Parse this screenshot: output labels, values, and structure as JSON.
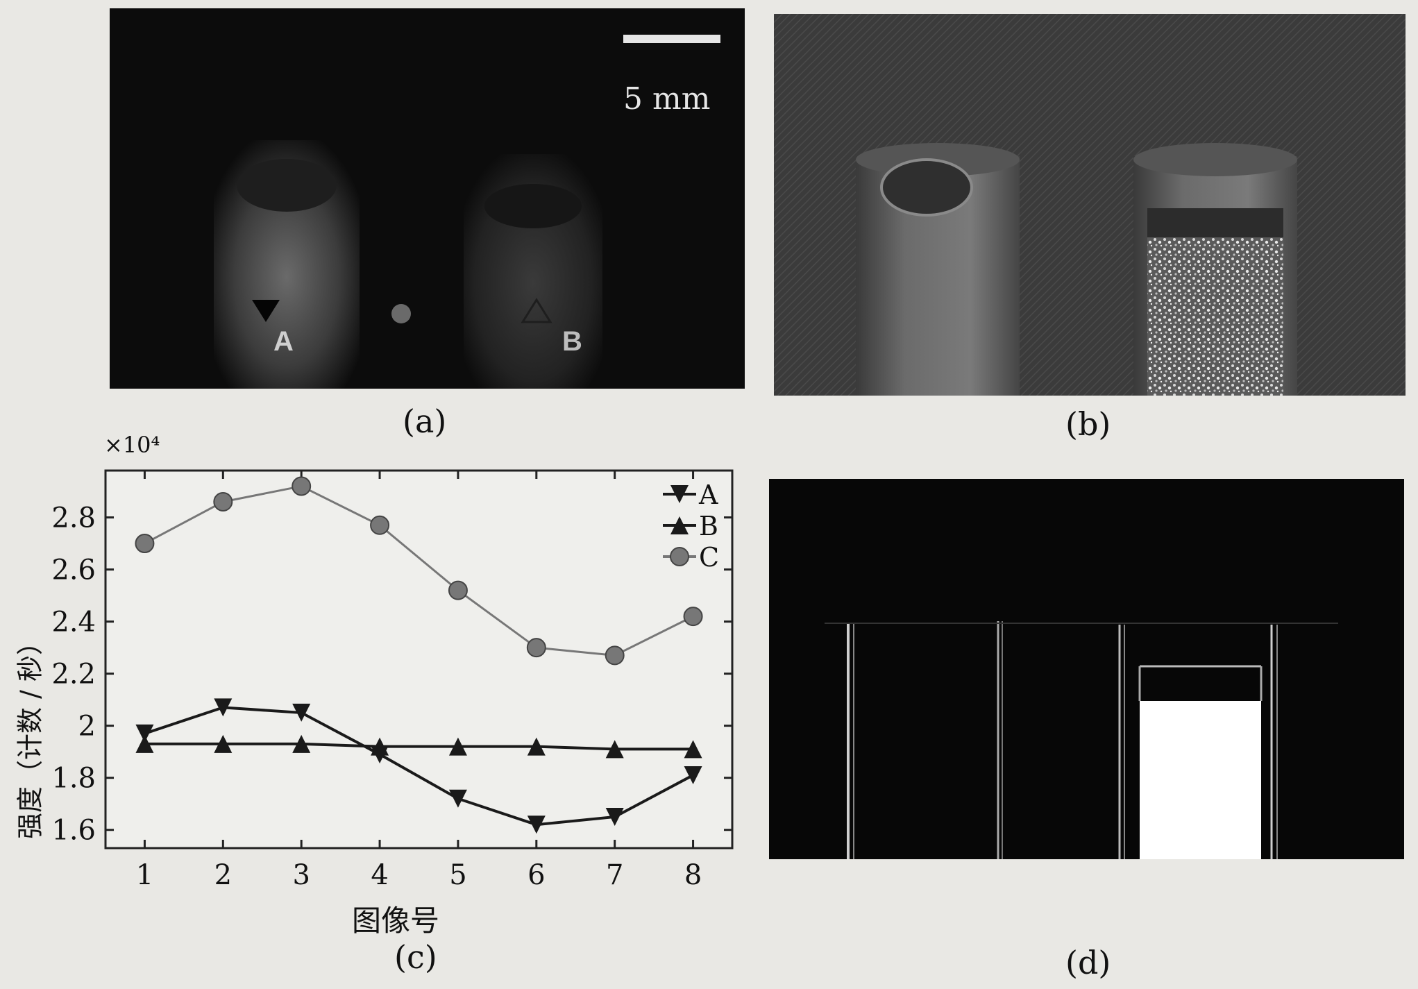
{
  "figure": {
    "panel_a": {
      "caption": "(a)",
      "scale_bar_label": "5 mm",
      "label_a": "A",
      "label_b": "B"
    },
    "panel_b": {
      "caption": "(b)"
    },
    "panel_c": {
      "caption": "(c)"
    },
    "panel_d": {
      "caption": "(d)"
    }
  },
  "chart_data": {
    "type": "line",
    "title": "",
    "xlabel": "图像号",
    "ylabel": "强度（计数 / 秒）",
    "y_multiplier": "×10⁴",
    "x": [
      1,
      2,
      3,
      4,
      5,
      6,
      7,
      8
    ],
    "xlim": [
      0.5,
      8.5
    ],
    "ylim": [
      1.53,
      2.98
    ],
    "yticks": [
      1.6,
      1.8,
      2,
      2.2,
      2.4,
      2.6,
      2.8
    ],
    "ytick_labels": [
      "1.6",
      "1.8",
      "2",
      "2.2",
      "2.4",
      "2.6",
      "2.8"
    ],
    "xtick_labels": [
      "1",
      "2",
      "3",
      "4",
      "5",
      "6",
      "7",
      "8"
    ],
    "legend_position": "top-right",
    "grid": false,
    "series": [
      {
        "name": "A",
        "marker": "triangle-down",
        "color": "#1a1a1a",
        "values": [
          1.97,
          2.07,
          2.05,
          1.89,
          1.72,
          1.62,
          1.65,
          1.81
        ]
      },
      {
        "name": "B",
        "marker": "triangle-up",
        "color": "#1a1a1a",
        "values": [
          1.93,
          1.93,
          1.93,
          1.92,
          1.92,
          1.92,
          1.91,
          1.91
        ]
      },
      {
        "name": "C",
        "marker": "circle",
        "color": "#777777",
        "values": [
          2.7,
          2.86,
          2.92,
          2.77,
          2.52,
          2.3,
          2.27,
          2.42
        ]
      }
    ]
  }
}
